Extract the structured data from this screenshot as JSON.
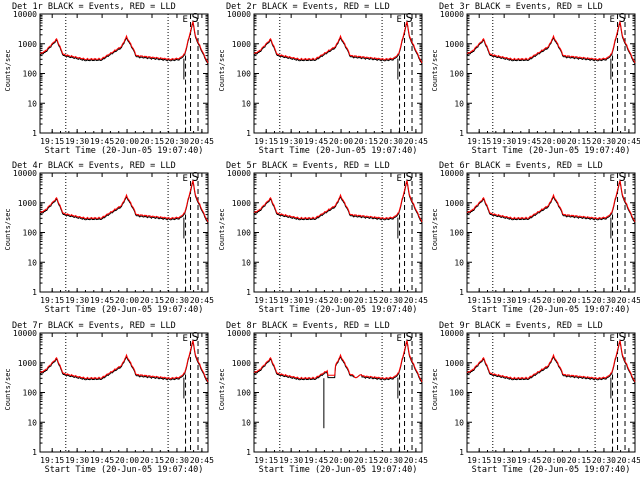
{
  "chart_data": [
    {
      "type": "line",
      "title": "Det 1r BLACK = Events, RED = LLD",
      "xlabel": "Start Time (20-Jun-05 19:07:40)",
      "ylabel": "Counts/sec",
      "y_scale": "log",
      "ylim": [
        1,
        10000
      ],
      "y_ticks": [
        "1",
        "10",
        "100",
        "1000",
        "10000"
      ],
      "x_ticks": [
        "19:15",
        "19:30",
        "19:45",
        "20:00",
        "20:15",
        "20:30",
        "20:45"
      ],
      "xlim_min": [
        0,
        101
      ],
      "markers": [
        "E",
        "S"
      ],
      "series": [
        {
          "name": "Events",
          "color": "#000000"
        },
        {
          "name": "LLD",
          "color": "#ff0000"
        }
      ]
    },
    {
      "type": "line",
      "title": "Det 2r BLACK = Events, RED = LLD",
      "xlabel": "Start Time (20-Jun-05 19:07:40)",
      "ylabel": "Counts/sec",
      "y_scale": "log",
      "ylim": [
        1,
        10000
      ],
      "y_ticks": [
        "1",
        "10",
        "100",
        "1000",
        "10000"
      ],
      "x_ticks": [
        "19:15",
        "19:30",
        "19:45",
        "20:00",
        "20:15",
        "20:30",
        "20:45"
      ],
      "xlim_min": [
        0,
        101
      ],
      "markers": [
        "E",
        "S"
      ],
      "series": [
        {
          "name": "Events",
          "color": "#000000"
        },
        {
          "name": "LLD",
          "color": "#ff0000"
        }
      ]
    },
    {
      "type": "line",
      "title": "Det 3r BLACK = Events, RED = LLD",
      "xlabel": "Start Time (20-Jun-05 19:07:40)",
      "ylabel": "Counts/sec",
      "y_scale": "log",
      "ylim": [
        1,
        10000
      ],
      "y_ticks": [
        "1",
        "10",
        "100",
        "1000",
        "10000"
      ],
      "x_ticks": [
        "19:15",
        "19:30",
        "19:45",
        "20:00",
        "20:15",
        "20:30",
        "20:45"
      ],
      "xlim_min": [
        0,
        101
      ],
      "markers": [
        "E",
        "S"
      ],
      "series": [
        {
          "name": "Events",
          "color": "#000000"
        },
        {
          "name": "LLD",
          "color": "#ff0000"
        }
      ]
    },
    {
      "type": "line",
      "title": "Det 4r BLACK = Events, RED = LLD",
      "xlabel": "Start Time (20-Jun-05 19:07:40)",
      "ylabel": "Counts/sec",
      "y_scale": "log",
      "ylim": [
        1,
        10000
      ],
      "y_ticks": [
        "1",
        "10",
        "100",
        "1000",
        "10000"
      ],
      "x_ticks": [
        "19:15",
        "19:30",
        "19:45",
        "20:00",
        "20:15",
        "20:30",
        "20:45"
      ],
      "xlim_min": [
        0,
        101
      ],
      "markers": [
        "E",
        "S"
      ],
      "series": [
        {
          "name": "Events",
          "color": "#000000"
        },
        {
          "name": "LLD",
          "color": "#ff0000"
        }
      ]
    },
    {
      "type": "line",
      "title": "Det 5r BLACK = Events, RED = LLD",
      "xlabel": "Start Time (20-Jun-05 19:07:40)",
      "ylabel": "Counts/sec",
      "y_scale": "log",
      "ylim": [
        1,
        10000
      ],
      "y_ticks": [
        "1",
        "10",
        "100",
        "1000",
        "10000"
      ],
      "x_ticks": [
        "19:15",
        "19:30",
        "19:45",
        "20:00",
        "20:15",
        "20:30",
        "20:45"
      ],
      "xlim_min": [
        0,
        101
      ],
      "markers": [
        "E",
        "S"
      ],
      "series": [
        {
          "name": "Events",
          "color": "#000000"
        },
        {
          "name": "LLD",
          "color": "#ff0000"
        }
      ]
    },
    {
      "type": "line",
      "title": "Det 6r BLACK = Events, RED = LLD",
      "xlabel": "Start Time (20-Jun-05 19:07:40)",
      "ylabel": "Counts/sec",
      "y_scale": "log",
      "ylim": [
        1,
        10000
      ],
      "y_ticks": [
        "1",
        "10",
        "100",
        "1000",
        "10000"
      ],
      "x_ticks": [
        "19:15",
        "19:30",
        "19:45",
        "20:00",
        "20:15",
        "20:30",
        "20:45"
      ],
      "xlim_min": [
        0,
        101
      ],
      "markers": [
        "E",
        "S"
      ],
      "series": [
        {
          "name": "Events",
          "color": "#000000"
        },
        {
          "name": "LLD",
          "color": "#ff0000"
        }
      ]
    },
    {
      "type": "line",
      "title": "Det 7r BLACK = Events, RED = LLD",
      "xlabel": "Start Time (20-Jun-05 19:07:40)",
      "ylabel": "Counts/sec",
      "y_scale": "log",
      "ylim": [
        1,
        10000
      ],
      "y_ticks": [
        "1",
        "10",
        "100",
        "1000",
        "10000"
      ],
      "x_ticks": [
        "19:15",
        "19:30",
        "19:45",
        "20:00",
        "20:15",
        "20:30",
        "20:45"
      ],
      "xlim_min": [
        0,
        101
      ],
      "markers": [
        "E",
        "S"
      ],
      "series": [
        {
          "name": "Events",
          "color": "#000000"
        },
        {
          "name": "LLD",
          "color": "#ff0000"
        }
      ]
    },
    {
      "type": "line",
      "title": "Det 8r BLACK = Events, RED = LLD",
      "xlabel": "Start Time (20-Jun-05 19:07:40)",
      "ylabel": "Counts/sec",
      "y_scale": "log",
      "ylim": [
        1,
        10000
      ],
      "y_ticks": [
        "1",
        "10",
        "100",
        "1000",
        "10000"
      ],
      "x_ticks": [
        "19:15",
        "19:30",
        "19:45",
        "20:00",
        "20:15",
        "20:30",
        "20:45"
      ],
      "xlim_min": [
        0,
        101
      ],
      "markers": [
        "E",
        "S"
      ],
      "series": [
        {
          "name": "Events",
          "color": "#000000"
        },
        {
          "name": "LLD",
          "color": "#ff0000"
        }
      ]
    },
    {
      "type": "line",
      "title": "Det 9r BLACK = Events, RED = LLD",
      "xlabel": "Start Time (20-Jun-05 19:07:40)",
      "ylabel": "Counts/sec",
      "y_scale": "log",
      "ylim": [
        1,
        10000
      ],
      "y_ticks": [
        "1",
        "10",
        "100",
        "1000",
        "10000"
      ],
      "x_ticks": [
        "19:15",
        "19:30",
        "19:45",
        "20:00",
        "20:15",
        "20:30",
        "20:45"
      ],
      "xlim_min": [
        0,
        101
      ],
      "markers": [
        "E",
        "S"
      ],
      "series": [
        {
          "name": "Events",
          "color": "#000000"
        },
        {
          "name": "LLD",
          "color": "#ff0000"
        }
      ]
    }
  ]
}
